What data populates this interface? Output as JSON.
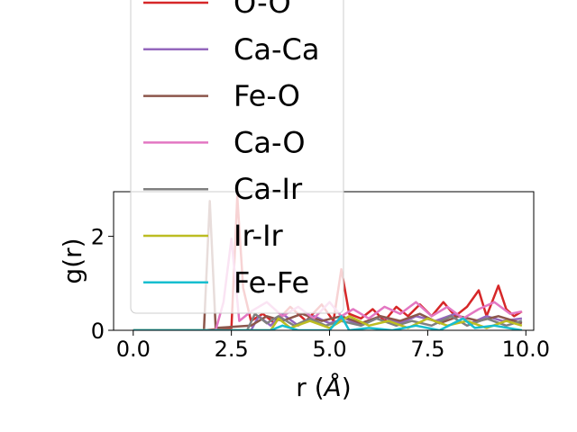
{
  "chart_data": {
    "type": "line",
    "title": "",
    "xlabel": "r (Å)",
    "xlabel_text": "r (",
    "xlabel_unit": "Å",
    "xlabel_close": ")",
    "ylabel": "g(r)",
    "xlim": [
      -0.5,
      10.2
    ],
    "ylim": [
      0,
      2.95
    ],
    "xticks": [
      0.0,
      2.5,
      5.0,
      7.5,
      10.0
    ],
    "xtick_labels": [
      "0.0",
      "2.5",
      "5.0",
      "7.5",
      "10.0"
    ],
    "yticks": [
      0,
      2
    ],
    "ytick_labels": [
      "0",
      "2"
    ],
    "grid": false,
    "legend_position": "upper-left, extending above the plot area",
    "series": [
      {
        "name": "O-O",
        "color": "#d62728",
        "points": [
          [
            0,
            0
          ],
          [
            1.8,
            0
          ],
          [
            2.5,
            0.05
          ],
          [
            2.65,
            2.85
          ],
          [
            2.8,
            0.9
          ],
          [
            3.0,
            0.2
          ],
          [
            3.3,
            0.35
          ],
          [
            3.6,
            0.15
          ],
          [
            4.0,
            0.5
          ],
          [
            4.4,
            0.2
          ],
          [
            4.8,
            0.55
          ],
          [
            5.1,
            0.2
          ],
          [
            5.3,
            1.3
          ],
          [
            5.5,
            0.35
          ],
          [
            5.8,
            0.25
          ],
          [
            6.1,
            0.45
          ],
          [
            6.4,
            0.2
          ],
          [
            6.7,
            0.5
          ],
          [
            7.0,
            0.3
          ],
          [
            7.3,
            0.55
          ],
          [
            7.6,
            0.3
          ],
          [
            7.9,
            0.6
          ],
          [
            8.2,
            0.3
          ],
          [
            8.5,
            0.5
          ],
          [
            8.8,
            0.85
          ],
          [
            9.0,
            0.3
          ],
          [
            9.3,
            0.95
          ],
          [
            9.5,
            0.45
          ],
          [
            9.7,
            0.3
          ],
          [
            9.9,
            0.4
          ]
        ]
      },
      {
        "name": "Ca-Ca",
        "color": "#9467bd",
        "points": [
          [
            0,
            0
          ],
          [
            3.0,
            0
          ],
          [
            3.2,
            0.3
          ],
          [
            3.5,
            0.1
          ],
          [
            3.8,
            0.35
          ],
          [
            4.2,
            0.1
          ],
          [
            4.6,
            0.3
          ],
          [
            5.0,
            0.15
          ],
          [
            5.4,
            0.25
          ],
          [
            5.8,
            0.1
          ],
          [
            6.3,
            0.3
          ],
          [
            6.8,
            0.15
          ],
          [
            7.2,
            0.3
          ],
          [
            7.7,
            0.2
          ],
          [
            8.2,
            0.35
          ],
          [
            8.6,
            0.15
          ],
          [
            9.0,
            0.3
          ],
          [
            9.4,
            0.2
          ],
          [
            9.9,
            0.25
          ]
        ]
      },
      {
        "name": "Fe-O",
        "color": "#8c564b",
        "points": [
          [
            0,
            0
          ],
          [
            1.8,
            0
          ],
          [
            1.95,
            2.75
          ],
          [
            2.1,
            0.05
          ],
          [
            3.0,
            0.1
          ],
          [
            3.4,
            0.3
          ],
          [
            3.8,
            0.2
          ],
          [
            4.3,
            0.35
          ],
          [
            4.8,
            0.2
          ],
          [
            5.3,
            0.3
          ],
          [
            5.8,
            0.15
          ],
          [
            6.3,
            0.3
          ],
          [
            6.8,
            0.2
          ],
          [
            7.3,
            0.35
          ],
          [
            7.8,
            0.15
          ],
          [
            8.3,
            0.3
          ],
          [
            8.8,
            0.2
          ],
          [
            9.3,
            0.3
          ],
          [
            9.9,
            0.15
          ]
        ]
      },
      {
        "name": "Ca-O",
        "color": "#e377c2",
        "points": [
          [
            0,
            0
          ],
          [
            2.1,
            0
          ],
          [
            2.3,
            0.6
          ],
          [
            2.5,
            1.95
          ],
          [
            2.7,
            0.2
          ],
          [
            3.0,
            0.4
          ],
          [
            3.4,
            0.6
          ],
          [
            3.8,
            0.3
          ],
          [
            4.2,
            0.5
          ],
          [
            4.6,
            0.25
          ],
          [
            5.0,
            0.6
          ],
          [
            5.3,
            0.3
          ],
          [
            5.6,
            0.45
          ],
          [
            6.0,
            0.25
          ],
          [
            6.4,
            0.5
          ],
          [
            6.8,
            0.35
          ],
          [
            7.2,
            0.6
          ],
          [
            7.6,
            0.3
          ],
          [
            8.0,
            0.5
          ],
          [
            8.4,
            0.25
          ],
          [
            8.8,
            0.45
          ],
          [
            9.2,
            0.6
          ],
          [
            9.6,
            0.35
          ],
          [
            9.9,
            0.4
          ]
        ]
      },
      {
        "name": "Ca-Ir",
        "color": "#7f7f7f",
        "points": [
          [
            0,
            0
          ],
          [
            2.9,
            0
          ],
          [
            3.1,
            0.35
          ],
          [
            3.4,
            0.15
          ],
          [
            3.7,
            0.3
          ],
          [
            4.1,
            0.1
          ],
          [
            4.5,
            0.25
          ],
          [
            4.9,
            0.1
          ],
          [
            5.3,
            0.2
          ],
          [
            5.8,
            0.1
          ],
          [
            6.2,
            0.25
          ],
          [
            6.7,
            0.1
          ],
          [
            7.1,
            0.2
          ],
          [
            7.6,
            0.1
          ],
          [
            8.1,
            0.3
          ],
          [
            8.5,
            0.1
          ],
          [
            9.0,
            0.25
          ],
          [
            9.5,
            0.1
          ],
          [
            9.9,
            0.2
          ]
        ]
      },
      {
        "name": "Ir-Ir",
        "color": "#bcbd22",
        "points": [
          [
            0,
            0
          ],
          [
            3.5,
            0
          ],
          [
            3.7,
            0.25
          ],
          [
            4.0,
            0.05
          ],
          [
            4.5,
            0.2
          ],
          [
            5.0,
            0.05
          ],
          [
            5.5,
            0.3
          ],
          [
            6.0,
            0.1
          ],
          [
            6.5,
            0.2
          ],
          [
            7.0,
            0.05
          ],
          [
            7.5,
            0.25
          ],
          [
            8.0,
            0.1
          ],
          [
            8.5,
            0.2
          ],
          [
            9.0,
            0.05
          ],
          [
            9.5,
            0.2
          ],
          [
            9.9,
            0.1
          ]
        ]
      },
      {
        "name": "Fe-Fe",
        "color": "#17becf",
        "points": [
          [
            0,
            0
          ],
          [
            3.5,
            0
          ],
          [
            3.8,
            0.1
          ],
          [
            4.2,
            0
          ],
          [
            5.0,
            0
          ],
          [
            5.3,
            0.3
          ],
          [
            5.5,
            0
          ],
          [
            6.0,
            0.05
          ],
          [
            6.6,
            0
          ],
          [
            7.2,
            0.1
          ],
          [
            7.8,
            0
          ],
          [
            8.4,
            0.25
          ],
          [
            8.7,
            0.05
          ],
          [
            9.2,
            0.1
          ],
          [
            9.9,
            0
          ]
        ]
      }
    ]
  }
}
